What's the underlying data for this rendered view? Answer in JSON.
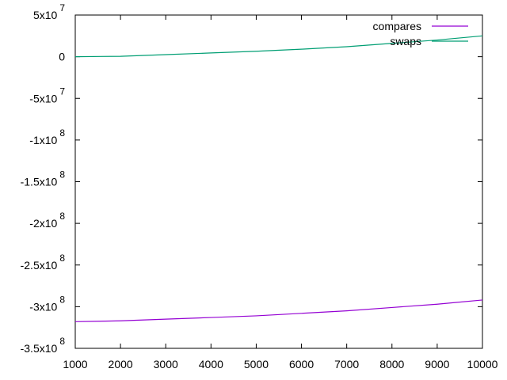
{
  "chart_data": {
    "type": "line",
    "title": "",
    "xlabel": "",
    "ylabel": "",
    "xlim": [
      1000,
      10000
    ],
    "ylim": [
      -350000000,
      50000000
    ],
    "grid": false,
    "legend_position": "top-right",
    "x_ticks": [
      {
        "value": 1000,
        "label": "1000"
      },
      {
        "value": 2000,
        "label": "2000"
      },
      {
        "value": 3000,
        "label": "3000"
      },
      {
        "value": 4000,
        "label": "4000"
      },
      {
        "value": 5000,
        "label": "5000"
      },
      {
        "value": 6000,
        "label": "6000"
      },
      {
        "value": 7000,
        "label": "7000"
      },
      {
        "value": 8000,
        "label": "8000"
      },
      {
        "value": 9000,
        "label": "9000"
      },
      {
        "value": 10000,
        "label": "10000"
      }
    ],
    "y_ticks": [
      {
        "value": 50000000,
        "mantissa": "5x10",
        "exponent": "7"
      },
      {
        "value": 0,
        "mantissa": "0",
        "exponent": ""
      },
      {
        "value": -50000000,
        "mantissa": "-5x10",
        "exponent": "7"
      },
      {
        "value": -100000000,
        "mantissa": "-1x10",
        "exponent": "8"
      },
      {
        "value": -150000000,
        "mantissa": "-1.5x10",
        "exponent": "8"
      },
      {
        "value": -200000000,
        "mantissa": "-2x10",
        "exponent": "8"
      },
      {
        "value": -250000000,
        "mantissa": "-2.5x10",
        "exponent": "8"
      },
      {
        "value": -300000000,
        "mantissa": "-3x10",
        "exponent": "8"
      },
      {
        "value": -350000000,
        "mantissa": "-3.5x10",
        "exponent": "8"
      }
    ],
    "x": [
      1000,
      2000,
      3000,
      4000,
      5000,
      6000,
      7000,
      8000,
      9000,
      10000
    ],
    "series": [
      {
        "name": "compares",
        "color": "#9400d3",
        "values": [
          -318000000,
          -317000000,
          -315000000,
          -313000000,
          -311000000,
          -308000000,
          -305000000,
          -301000000,
          -297000000,
          -292000000
        ]
      },
      {
        "name": "swaps",
        "color": "#009e73",
        "values": [
          0,
          500000,
          2500000,
          4500000,
          6500000,
          9000000,
          12000000,
          16000000,
          20000000,
          25000000
        ]
      }
    ]
  }
}
